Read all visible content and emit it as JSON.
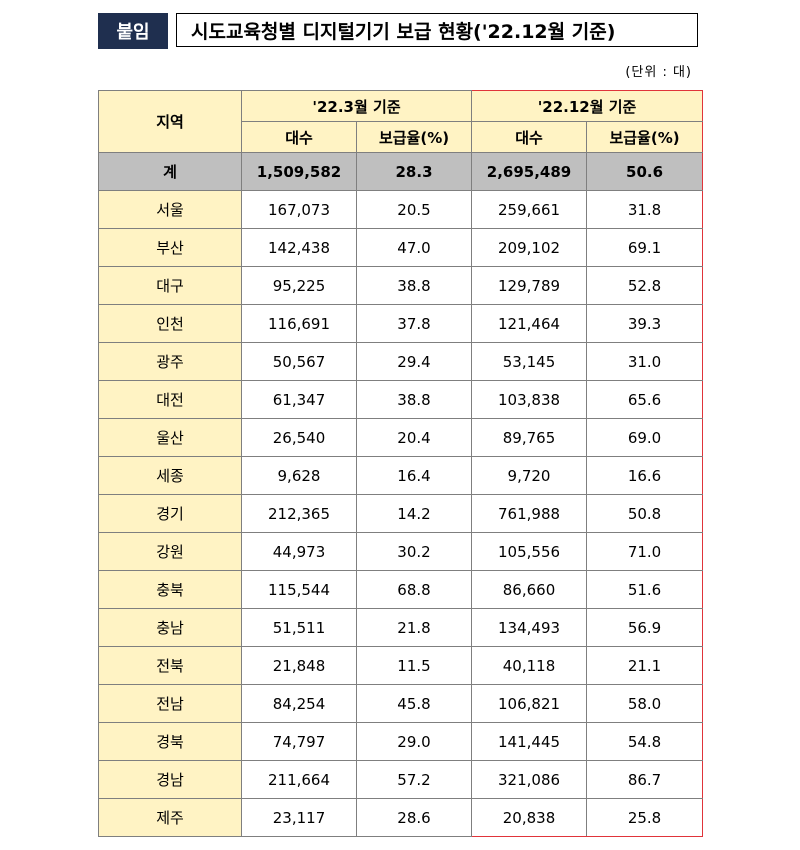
{
  "header": {
    "badge": "붙임",
    "title": "시도교육청별 디지털기기 보급 현황('22.12월 기준)"
  },
  "unit": "(단위 : 대)",
  "table": {
    "region_header": "지역",
    "period1": "'22.3월 기준",
    "period2": "'22.12월 기준",
    "count_header": "대수",
    "rate_header": "보급율(%)",
    "total": {
      "label": "계",
      "c1": "1,509,582",
      "r1": "28.3",
      "c2": "2,695,489",
      "r2": "50.6"
    },
    "rows": [
      {
        "label": "서울",
        "c1": "167,073",
        "r1": "20.5",
        "c2": "259,661",
        "r2": "31.8"
      },
      {
        "label": "부산",
        "c1": "142,438",
        "r1": "47.0",
        "c2": "209,102",
        "r2": "69.1"
      },
      {
        "label": "대구",
        "c1": "95,225",
        "r1": "38.8",
        "c2": "129,789",
        "r2": "52.8"
      },
      {
        "label": "인천",
        "c1": "116,691",
        "r1": "37.8",
        "c2": "121,464",
        "r2": "39.3"
      },
      {
        "label": "광주",
        "c1": "50,567",
        "r1": "29.4",
        "c2": "53,145",
        "r2": "31.0"
      },
      {
        "label": "대전",
        "c1": "61,347",
        "r1": "38.8",
        "c2": "103,838",
        "r2": "65.6"
      },
      {
        "label": "울산",
        "c1": "26,540",
        "r1": "20.4",
        "c2": "89,765",
        "r2": "69.0"
      },
      {
        "label": "세종",
        "c1": "9,628",
        "r1": "16.4",
        "c2": "9,720",
        "r2": "16.6"
      },
      {
        "label": "경기",
        "c1": "212,365",
        "r1": "14.2",
        "c2": "761,988",
        "r2": "50.8"
      },
      {
        "label": "강원",
        "c1": "44,973",
        "r1": "30.2",
        "c2": "105,556",
        "r2": "71.0"
      },
      {
        "label": "충북",
        "c1": "115,544",
        "r1": "68.8",
        "c2": "86,660",
        "r2": "51.6"
      },
      {
        "label": "충남",
        "c1": "51,511",
        "r1": "21.8",
        "c2": "134,493",
        "r2": "56.9"
      },
      {
        "label": "전북",
        "c1": "21,848",
        "r1": "11.5",
        "c2": "40,118",
        "r2": "21.1"
      },
      {
        "label": "전남",
        "c1": "84,254",
        "r1": "45.8",
        "c2": "106,821",
        "r2": "58.0"
      },
      {
        "label": "경북",
        "c1": "74,797",
        "r1": "29.0",
        "c2": "141,445",
        "r2": "54.8"
      },
      {
        "label": "경남",
        "c1": "211,664",
        "r1": "57.2",
        "c2": "321,086",
        "r2": "86.7"
      },
      {
        "label": "제주",
        "c1": "23,117",
        "r1": "28.6",
        "c2": "20,838",
        "r2": "25.8"
      }
    ]
  }
}
